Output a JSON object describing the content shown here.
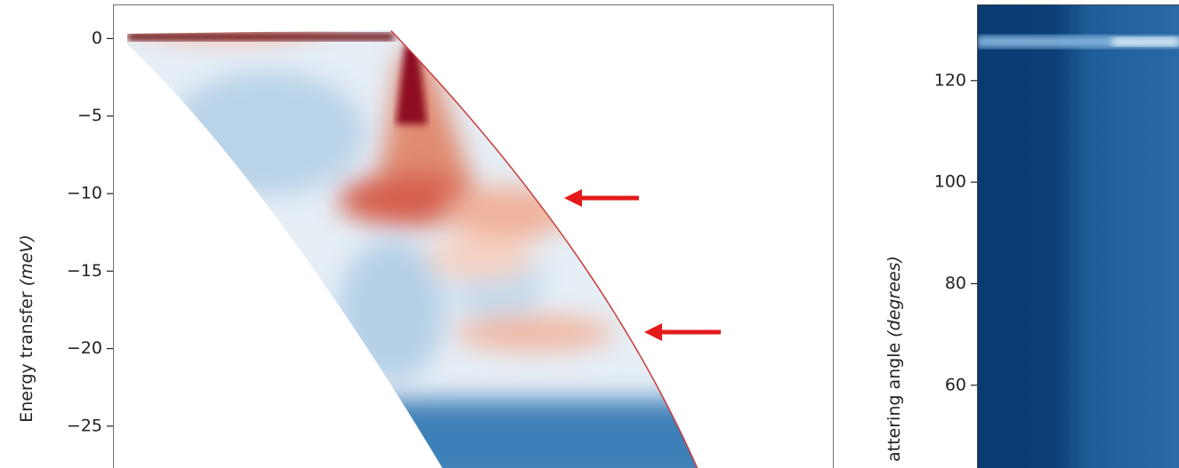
{
  "chart_data": [
    {
      "type": "heatmap",
      "ylabel": "Energy transfer",
      "ylabel_unit": "(meV)",
      "ylim": [
        -27.7,
        2.2
      ],
      "yticks": [
        {
          "value": 0,
          "label": "0"
        },
        {
          "value": -5,
          "label": "−5"
        },
        {
          "value": -10,
          "label": "−10"
        },
        {
          "value": -15,
          "label": "−15"
        },
        {
          "value": -20,
          "label": "−20"
        },
        {
          "value": -25,
          "label": "−25"
        }
      ]
    },
    {
      "type": "heatmap",
      "ylabel": "attering angle",
      "ylabel_unit": "(degrees)",
      "ylim": [
        43.7,
        135
      ],
      "yticks": [
        120,
        100,
        80,
        60
      ]
    }
  ]
}
